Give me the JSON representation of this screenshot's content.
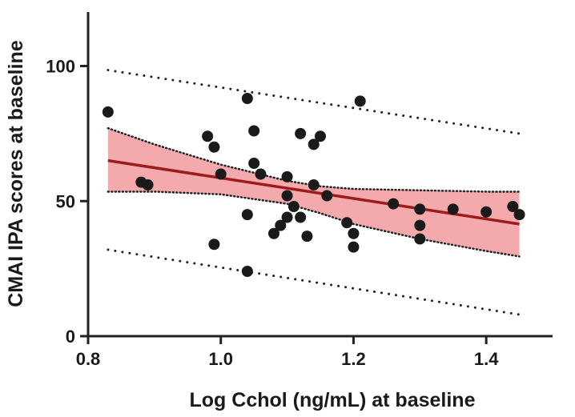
{
  "chart_data": {
    "type": "scatter",
    "title": "",
    "xlabel": "Log Cchol (ng/mL) at baseline",
    "ylabel": "CMAI IPA scores at baseline",
    "xlim": [
      0.8,
      1.5
    ],
    "ylim": [
      0,
      120
    ],
    "x_ticks": [
      0.8,
      1.0,
      1.2,
      1.4
    ],
    "x_tick_labels": [
      "0.8",
      "1.0",
      "1.2",
      "1.4"
    ],
    "y_ticks": [
      0,
      50,
      100
    ],
    "y_tick_labels": [
      "0",
      "50",
      "100"
    ],
    "grid": false,
    "points": [
      {
        "x": 0.83,
        "y": 83
      },
      {
        "x": 0.88,
        "y": 57
      },
      {
        "x": 0.89,
        "y": 56
      },
      {
        "x": 0.98,
        "y": 74
      },
      {
        "x": 0.99,
        "y": 70
      },
      {
        "x": 0.99,
        "y": 34
      },
      {
        "x": 1.0,
        "y": 60
      },
      {
        "x": 1.04,
        "y": 88
      },
      {
        "x": 1.04,
        "y": 45
      },
      {
        "x": 1.04,
        "y": 24
      },
      {
        "x": 1.05,
        "y": 76
      },
      {
        "x": 1.05,
        "y": 64
      },
      {
        "x": 1.06,
        "y": 60
      },
      {
        "x": 1.08,
        "y": 38
      },
      {
        "x": 1.09,
        "y": 41
      },
      {
        "x": 1.1,
        "y": 59
      },
      {
        "x": 1.1,
        "y": 52
      },
      {
        "x": 1.1,
        "y": 44
      },
      {
        "x": 1.11,
        "y": 48
      },
      {
        "x": 1.12,
        "y": 75
      },
      {
        "x": 1.12,
        "y": 44
      },
      {
        "x": 1.13,
        "y": 37
      },
      {
        "x": 1.14,
        "y": 71
      },
      {
        "x": 1.14,
        "y": 56
      },
      {
        "x": 1.15,
        "y": 74
      },
      {
        "x": 1.16,
        "y": 52
      },
      {
        "x": 1.19,
        "y": 42
      },
      {
        "x": 1.2,
        "y": 38
      },
      {
        "x": 1.2,
        "y": 33
      },
      {
        "x": 1.21,
        "y": 87
      },
      {
        "x": 1.26,
        "y": 49
      },
      {
        "x": 1.3,
        "y": 47
      },
      {
        "x": 1.3,
        "y": 41
      },
      {
        "x": 1.3,
        "y": 36
      },
      {
        "x": 1.35,
        "y": 47
      },
      {
        "x": 1.4,
        "y": 46
      },
      {
        "x": 1.44,
        "y": 48
      },
      {
        "x": 1.45,
        "y": 45
      }
    ],
    "regression_line": {
      "x": [
        0.83,
        1.45
      ],
      "y": [
        65,
        41.5
      ]
    },
    "confidence_band": {
      "x": [
        0.83,
        0.9,
        1.0,
        1.1,
        1.15,
        1.2,
        1.3,
        1.4,
        1.45
      ],
      "upper": [
        77,
        71,
        63.5,
        57.5,
        55.5,
        54.5,
        54,
        53.5,
        53.5
      ],
      "lower": [
        53.5,
        53.5,
        52.5,
        49,
        45.5,
        41.5,
        36,
        31.5,
        29.5
      ]
    },
    "prediction_band": {
      "x": [
        0.83,
        1.45
      ],
      "upper": [
        98.5,
        75
      ],
      "lower": [
        32,
        8
      ]
    },
    "colors": {
      "points": "#1a1a1a",
      "regression_line": "#9e1b1b",
      "confidence_fill": "#f4a9ad",
      "band_border": "#222222",
      "axis": "#222222"
    }
  }
}
